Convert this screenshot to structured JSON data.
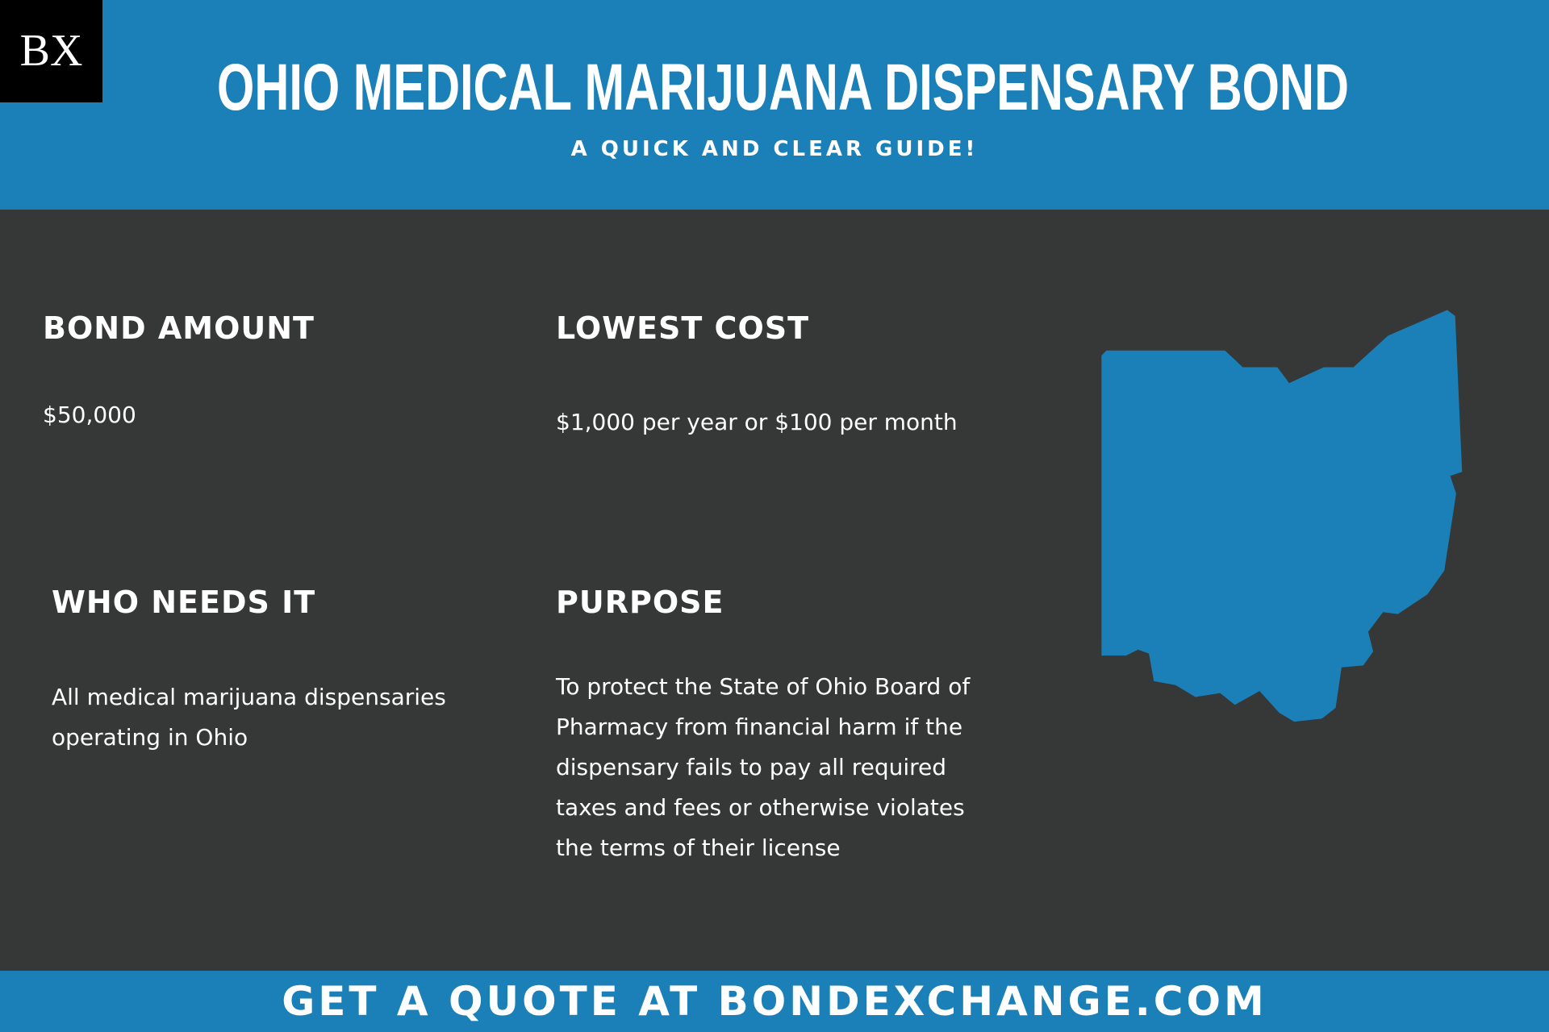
{
  "header": {
    "logo": "BX",
    "title": "OHIO MEDICAL MARIJUANA DISPENSARY BOND",
    "subtitle": "A QUICK AND CLEAR GUIDE!"
  },
  "sections": [
    {
      "heading": "BOND AMOUNT",
      "text": "$50,000"
    },
    {
      "heading": "LOWEST COST",
      "text": "$1,000 per year or $100 per month"
    },
    {
      "heading": "WHO NEEDS IT",
      "text": "All medical marijuana dispensaries operating in Ohio"
    },
    {
      "heading": "PURPOSE",
      "text": "To protect the State of Ohio Board of Pharmacy from financial harm if the dispensary fails to pay all required taxes and fees or otherwise violates the terms of their license"
    }
  ],
  "footer": {
    "text": "GET A QUOTE AT BONDEXCHANGE.COM"
  }
}
